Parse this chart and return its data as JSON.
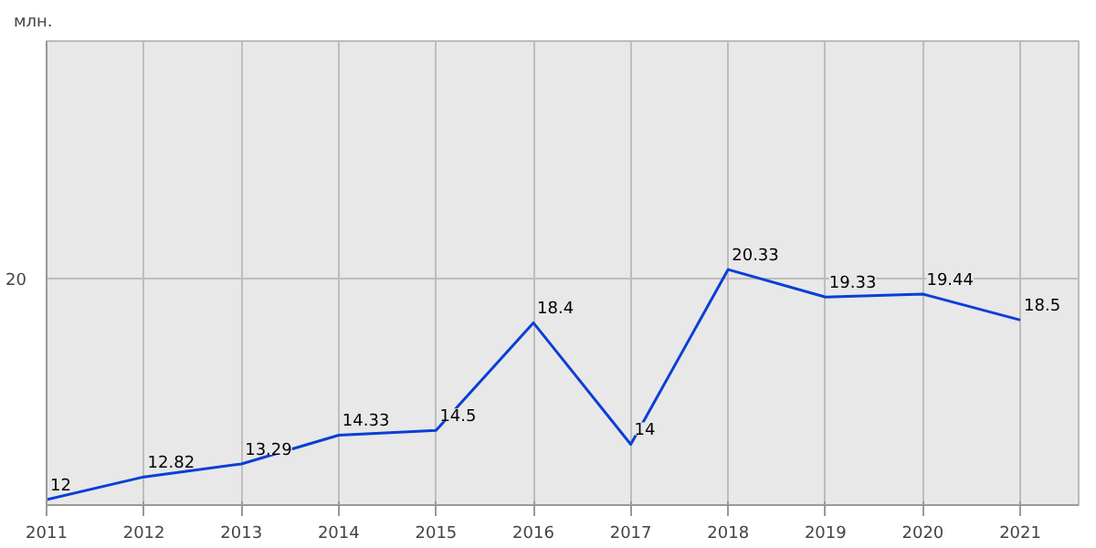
{
  "chart_data": {
    "type": "line",
    "ylabel": "млн.",
    "x": [
      2011,
      2012,
      2013,
      2014,
      2015,
      2016,
      2017,
      2018,
      2019,
      2020,
      2021
    ],
    "series": [
      {
        "color": "#0a3fd6",
        "values": [
          12,
          12.82,
          13.29,
          14.33,
          14.5,
          18.4,
          14,
          20.33,
          19.33,
          19.44,
          18.5
        ]
      }
    ],
    "xlim": [
      2011,
      2021.6
    ],
    "ylim": [
      11.8,
      28.6
    ],
    "xticks": [
      2011,
      2012,
      2013,
      2014,
      2015,
      2016,
      2017,
      2018,
      2019,
      2020,
      2021
    ],
    "ref_lines": [
      {
        "axis": "y",
        "value": 20,
        "label": "20",
        "color": "#bdbdbd"
      }
    ],
    "grid": "x",
    "data_labels": true,
    "marker": "none",
    "line_style": "solid"
  }
}
